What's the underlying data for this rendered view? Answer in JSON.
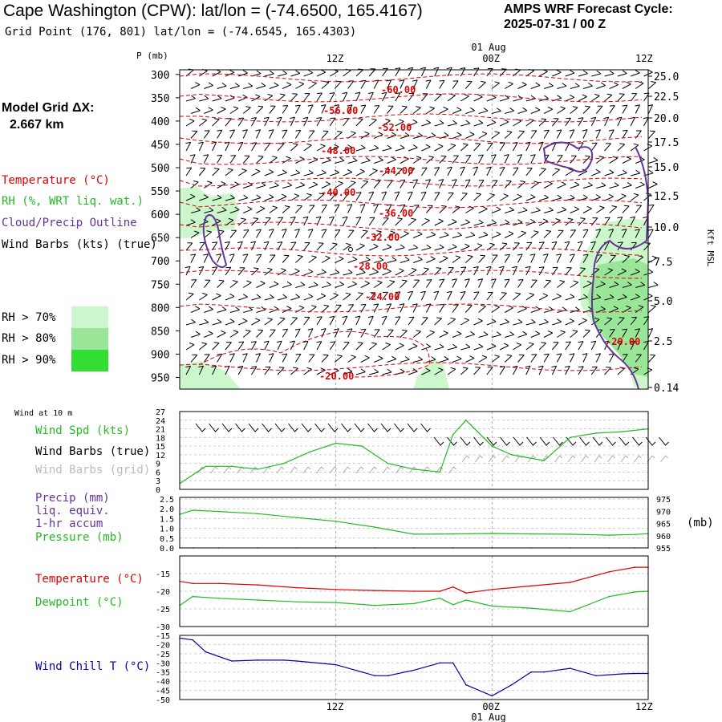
{
  "header": {
    "title": "Cape Washington (CPW):  lat/lon = (-74.6500, 165.4167)",
    "subtitle": "Grid Point (176, 801) lat/lon = (-74.6545, 165.4303)",
    "cycle_line1": "AMPS WRF Forecast Cycle:",
    "cycle_line2": "2025-07-31 / 00  Z",
    "grid_line1": "Model Grid ΔX:",
    "grid_line2": "2.667 km"
  },
  "legend": {
    "temperature": "Temperature (°C)",
    "rh": "RH (%, WRT liq. wat.)",
    "cloud": "Cloud/Precip Outline",
    "wind": "Wind Barbs (kts) (true)",
    "rh70": "RH > 70%",
    "rh80": "RH > 80%",
    "rh90": "RH > 90%",
    "rh70_color": "#ccf7cc",
    "rh80_color": "#99e699",
    "rh90_color": "#33dd33"
  },
  "colors": {
    "temperature": "#dd0000",
    "rh": "#22bb22",
    "cloud": "#663399",
    "wind_chill": "#0000aa"
  },
  "time_axis": {
    "top_labels": [
      "12Z",
      "00Z",
      "12Z"
    ],
    "date_label": "01 Aug",
    "bottom_labels": [
      "12Z",
      "00Z",
      "12Z"
    ],
    "time_hours": [
      0,
      12,
      24,
      36
    ]
  },
  "chart_data": [
    {
      "type": "line",
      "name": "cross-section",
      "ylabel": "P (mb)",
      "y2label": "Kft MSL",
      "y_ticks": [
        300,
        350,
        400,
        450,
        500,
        550,
        600,
        650,
        700,
        750,
        800,
        850,
        900,
        950
      ],
      "ylim": [
        975,
        290
      ],
      "y2_ticks": [
        "25.0",
        "22.5",
        "20.0",
        "17.5",
        "15.0",
        "12.5",
        "10.0",
        "7.5",
        "5.0",
        "2.5",
        "0.14"
      ],
      "temperature_contour_labels": [
        "-60.00",
        "-56.00",
        "-52.00",
        "-48.00",
        "-44.00",
        "-40.00",
        "-36.00",
        "-32.00",
        "-28.00",
        "-24.00",
        "-20.00",
        "-20.00"
      ]
    },
    {
      "type": "line",
      "name": "wind-10m",
      "title": "Wind at 10 m",
      "series_labels": [
        "Wind Spd (kts)",
        "Wind Barbs (true)",
        "Wind Barbs (grid)"
      ],
      "y_ticks": [
        0,
        3,
        6,
        9,
        12,
        15,
        18,
        21,
        24,
        27
      ],
      "ylim": [
        0,
        27
      ],
      "x": [
        0,
        2,
        4,
        6,
        8,
        10,
        12,
        14,
        16,
        18,
        20,
        21,
        22,
        24,
        25.5,
        28,
        30,
        32,
        34,
        36
      ],
      "values": [
        2,
        8,
        8,
        7,
        9,
        13,
        16,
        15,
        9,
        7,
        6,
        19,
        24,
        15,
        12,
        10,
        18,
        19.5,
        20,
        21
      ]
    },
    {
      "type": "line",
      "name": "precip-pressure",
      "series_labels": [
        "Precip (mm)",
        "liq. equiv.",
        "1-hr accum",
        "Pressure (mb)"
      ],
      "y_ticks": [
        "0.0",
        "0.5",
        "1.0",
        "1.5",
        "2.0",
        "2.5"
      ],
      "y2_ticks": [
        "955",
        "960",
        "965",
        "970",
        "975"
      ],
      "y2label": "(mb)",
      "x": [
        0,
        1,
        3,
        6,
        9,
        12,
        15,
        18,
        21,
        24,
        27,
        30,
        33,
        35,
        36
      ],
      "pressure": [
        968.7,
        970.4,
        969.9,
        969.0,
        967.4,
        965.9,
        963.5,
        960.6,
        960.7,
        960.9,
        960.7,
        960.6,
        960.2,
        960.5,
        960.8
      ],
      "precip": [
        0,
        0,
        0,
        0,
        0,
        0,
        0,
        0,
        0,
        0,
        0,
        0,
        0,
        0,
        0
      ]
    },
    {
      "type": "line",
      "name": "temp-dewpoint",
      "series_labels": [
        "Temperature (°C)",
        "Dewpoint (°C)"
      ],
      "y_ticks": [
        -15,
        -20,
        -25,
        -30
      ],
      "ylim": [
        -30,
        -10
      ],
      "x": [
        0,
        1,
        3,
        6,
        9,
        12,
        15,
        18,
        20,
        21,
        22,
        24,
        27,
        30,
        33,
        35,
        36
      ],
      "temperature": [
        -17.2,
        -17.8,
        -17.8,
        -18.2,
        -19.0,
        -19.5,
        -19.8,
        -20.0,
        -20.0,
        -18.8,
        -20.5,
        -19.5,
        -18.5,
        -17.5,
        -14.5,
        -13.2,
        -13.2
      ],
      "dewpoint": [
        -24.0,
        -21.5,
        -22.0,
        -22.5,
        -23.0,
        -23.2,
        -24.0,
        -23.5,
        -22.0,
        -23.8,
        -22.5,
        -24.2,
        -24.8,
        -25.8,
        -21.5,
        -20.2,
        -20.0
      ]
    },
    {
      "type": "line",
      "name": "wind-chill",
      "series_labels": [
        "Wind Chill T (°C)"
      ],
      "y_ticks": [
        -15,
        -20,
        -25,
        -30,
        -35,
        -40,
        -45,
        -50
      ],
      "ylim": [
        -50,
        -15
      ],
      "x": [
        0,
        1,
        2,
        4,
        6,
        8,
        9,
        12,
        14,
        15,
        16,
        18,
        20,
        21,
        22,
        24,
        25.5,
        27,
        28,
        30,
        32,
        34,
        35,
        36
      ],
      "values": [
        -16.5,
        -17.5,
        -24,
        -29,
        -28.5,
        -28.5,
        -29,
        -31,
        -35,
        -37,
        -37,
        -34,
        -30,
        -30,
        -42,
        -48,
        -42,
        -35,
        -35,
        -33,
        -37,
        -36,
        -35.8,
        -35.8
      ]
    }
  ]
}
